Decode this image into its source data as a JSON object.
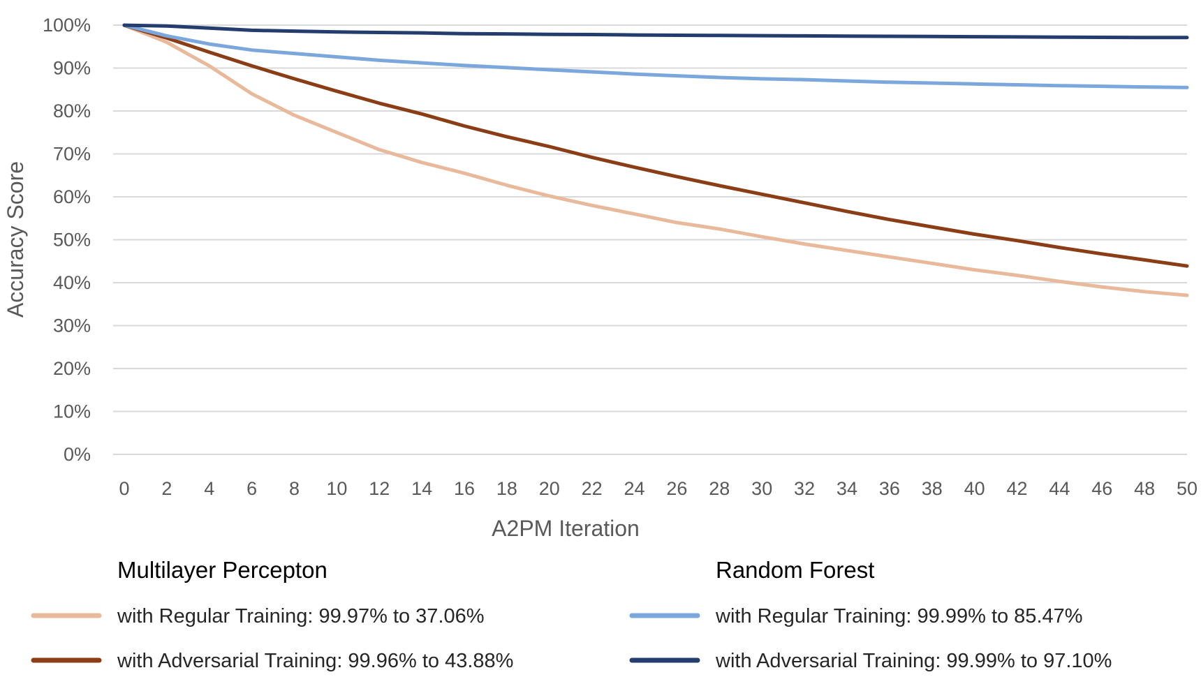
{
  "chart_data": {
    "type": "line",
    "title": "",
    "xlabel": "A2PM Iteration",
    "ylabel": "Accuracy Score",
    "xlim": [
      0,
      50
    ],
    "ylim": [
      0,
      100
    ],
    "x_ticks": [
      0,
      2,
      4,
      6,
      8,
      10,
      12,
      14,
      16,
      18,
      20,
      22,
      24,
      26,
      28,
      30,
      32,
      34,
      36,
      38,
      40,
      42,
      44,
      46,
      48,
      50
    ],
    "y_ticks": [
      "0%",
      "10%",
      "20%",
      "30%",
      "40%",
      "50%",
      "60%",
      "70%",
      "80%",
      "90%",
      "100%"
    ],
    "grid": "horizontal",
    "legend_position": "bottom",
    "legend_groups": [
      {
        "title": "Multilayer Percepton",
        "series": [
          0,
          1
        ]
      },
      {
        "title": "Random Forest",
        "series": [
          2,
          3
        ]
      }
    ],
    "x": [
      0,
      2,
      4,
      6,
      8,
      10,
      12,
      14,
      16,
      18,
      20,
      22,
      24,
      26,
      28,
      30,
      32,
      34,
      36,
      38,
      40,
      42,
      44,
      46,
      48,
      50
    ],
    "series": [
      {
        "name": "with Regular Training:  99.97% to 37.06%",
        "color": "#E8B99A",
        "values": [
          99.97,
          96.0,
          90.5,
          84.0,
          79.0,
          75.0,
          71.0,
          68.0,
          65.5,
          62.7,
          60.2,
          58.0,
          56.0,
          54.0,
          52.5,
          50.7,
          49.0,
          47.5,
          46.0,
          44.5,
          43.0,
          41.7,
          40.3,
          39.0,
          37.9,
          37.06
        ]
      },
      {
        "name": "with Adversarial Training:  99.96% to 43.88%",
        "color": "#8B3E16",
        "values": [
          99.96,
          97.0,
          93.7,
          90.5,
          87.5,
          84.6,
          81.8,
          79.3,
          76.5,
          74.0,
          71.7,
          69.2,
          66.9,
          64.7,
          62.6,
          60.6,
          58.6,
          56.6,
          54.7,
          53.0,
          51.3,
          49.8,
          48.2,
          46.7,
          45.3,
          43.88
        ]
      },
      {
        "name": "with Regular Training:  99.99% to 85.47%",
        "color": "#7BA7DC",
        "values": [
          99.99,
          97.5,
          95.6,
          94.2,
          93.4,
          92.6,
          91.8,
          91.2,
          90.6,
          90.1,
          89.6,
          89.1,
          88.6,
          88.2,
          87.8,
          87.5,
          87.3,
          87.0,
          86.7,
          86.5,
          86.3,
          86.1,
          85.9,
          85.75,
          85.6,
          85.47
        ]
      },
      {
        "name": "with Adversarial Training:  99.99% to 97.10%",
        "color": "#233D6E",
        "values": [
          99.99,
          99.8,
          99.3,
          98.8,
          98.6,
          98.4,
          98.3,
          98.2,
          98.0,
          97.95,
          97.85,
          97.8,
          97.7,
          97.65,
          97.6,
          97.55,
          97.5,
          97.45,
          97.4,
          97.35,
          97.3,
          97.25,
          97.2,
          97.15,
          97.12,
          97.1
        ]
      }
    ]
  }
}
